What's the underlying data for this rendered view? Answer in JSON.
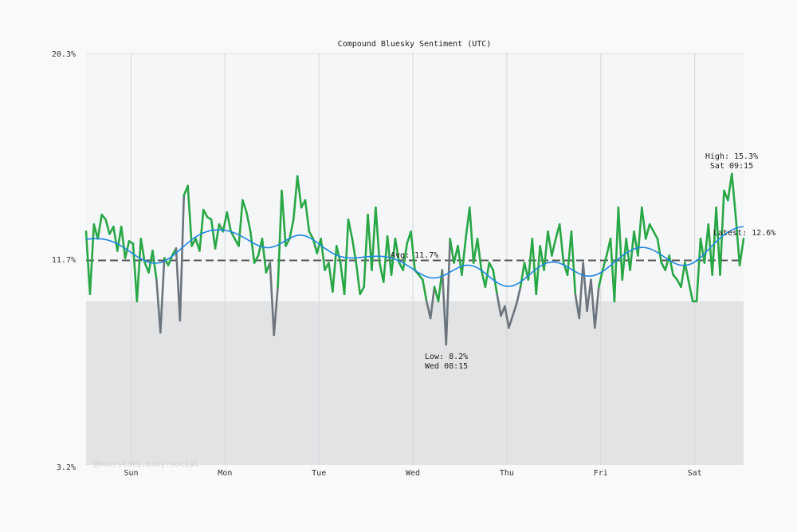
{
  "chart_data": {
    "type": "line",
    "title": "Compound Bluesky Sentiment (UTC)",
    "ylim": [
      3.2,
      20.3
    ],
    "y_ticks": [
      "20.3%",
      "11.7%",
      "3.2%"
    ],
    "x_ticks": [
      "Sun",
      "Mon",
      "Tue",
      "Wed",
      "Thu",
      "Fri",
      "Sat"
    ],
    "grid": true,
    "shaded_below": 10.0,
    "series_start": "Sat 12:30",
    "interval_minutes": 60,
    "values": [
      12.9,
      10.3,
      13.2,
      12.6,
      13.6,
      13.4,
      12.8,
      13.1,
      12.1,
      13.1,
      11.8,
      12.5,
      12.4,
      10.0,
      12.6,
      11.6,
      11.2,
      12.1,
      10.9,
      8.7,
      11.8,
      11.5,
      11.9,
      12.2,
      9.2,
      14.4,
      14.8,
      12.3,
      12.6,
      12.1,
      13.8,
      13.5,
      13.4,
      12.2,
      13.2,
      12.9,
      13.7,
      12.9,
      12.6,
      12.3,
      14.2,
      13.7,
      12.9,
      11.6,
      11.9,
      12.6,
      11.2,
      11.6,
      8.6,
      10.6,
      14.6,
      12.3,
      12.6,
      13.4,
      15.2,
      13.9,
      14.2,
      12.9,
      12.6,
      12.0,
      12.6,
      11.3,
      11.6,
      10.4,
      12.3,
      11.6,
      10.3,
      13.4,
      12.6,
      11.6,
      10.3,
      10.6,
      13.6,
      11.3,
      13.9,
      11.6,
      10.8,
      12.7,
      11.1,
      12.6,
      11.6,
      11.3,
      12.4,
      12.9,
      11.3,
      11.1,
      10.9,
      10.0,
      9.3,
      10.6,
      10.0,
      11.3,
      8.2,
      12.6,
      11.6,
      12.3,
      11.1,
      12.6,
      13.9,
      11.6,
      12.6,
      11.3,
      10.6,
      11.6,
      11.3,
      10.3,
      9.4,
      9.8,
      8.9,
      9.4,
      9.9,
      10.6,
      11.6,
      10.9,
      12.6,
      10.3,
      12.3,
      11.3,
      12.9,
      11.9,
      12.6,
      13.2,
      11.6,
      11.1,
      12.9,
      10.3,
      9.3,
      11.6,
      9.6,
      10.9,
      8.9,
      10.6,
      11.3,
      11.9,
      12.6,
      10.0,
      13.9,
      10.9,
      12.6,
      11.3,
      12.9,
      11.9,
      13.9,
      12.6,
      13.2,
      12.9,
      12.6,
      11.6,
      11.3,
      11.9,
      11.1,
      10.9,
      10.6,
      11.6,
      10.8,
      10.0,
      10.0,
      12.6,
      11.6,
      13.2,
      11.1,
      13.9,
      11.1,
      14.6,
      14.2,
      15.3,
      13.5,
      11.5,
      12.6
    ],
    "average": 11.7,
    "annotations": {
      "avg": "Avg: 11.7%",
      "low_value": "Low: 8.2%",
      "low_time": "Wed 08:15",
      "high_value": "High: 15.3%",
      "high_time": "Sat 09:15",
      "latest": "Latest: 12.6%"
    },
    "watermark": "@hourstats.bsky.social",
    "colors": {
      "line": "#28a745",
      "line_below": "#6c757d",
      "trend": "#1e88e5",
      "average": "#555555",
      "band": "#e2e3e5"
    }
  }
}
